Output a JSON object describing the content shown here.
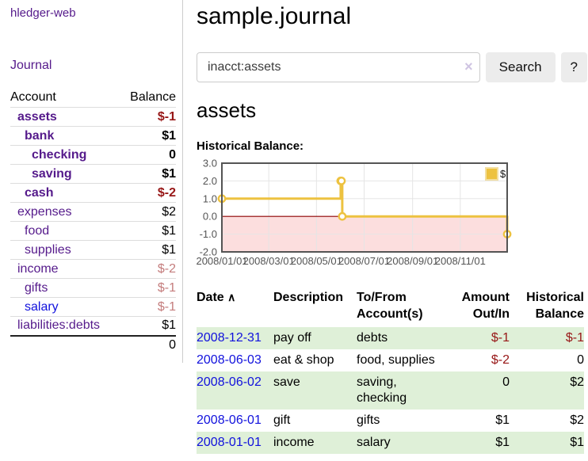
{
  "app": {
    "brand": "hledger-web",
    "nav_journal": "Journal"
  },
  "colors": {
    "link_purple": "#551a8b",
    "link_blue": "#1111dd",
    "negative_red": "#971616",
    "pale_negative_red": "#c47c7c",
    "row_green": "#dff0d8",
    "chart_line_yellow": "#edc240",
    "chart_negative_fill": "#fcdede",
    "chart_zero_line": "#8b0000",
    "button_gray": "#ececec"
  },
  "sidebar": {
    "headers": {
      "account": "Account",
      "balance": "Balance"
    },
    "rows": [
      {
        "account": "assets",
        "level": 1,
        "bold": true,
        "link_color": "purple",
        "balance": "$-1",
        "balance_style": "neg-bold"
      },
      {
        "account": "bank",
        "level": 2,
        "bold": true,
        "link_color": "purple",
        "balance": "$1",
        "balance_style": "bold"
      },
      {
        "account": "checking",
        "level": 3,
        "bold": true,
        "link_color": "purple",
        "balance": "0",
        "balance_style": "bold"
      },
      {
        "account": "saving",
        "level": 3,
        "bold": true,
        "link_color": "purple",
        "balance": "$1",
        "balance_style": "bold"
      },
      {
        "account": "cash",
        "level": 2,
        "bold": true,
        "link_color": "purple",
        "balance": "$-2",
        "balance_style": "neg-bold"
      },
      {
        "account": "expenses",
        "level": 1,
        "bold": false,
        "link_color": "purple",
        "balance": "$2",
        "balance_style": "plain"
      },
      {
        "account": "food",
        "level": 2,
        "bold": false,
        "link_color": "purple",
        "balance": "$1",
        "balance_style": "plain"
      },
      {
        "account": "supplies",
        "level": 2,
        "bold": false,
        "link_color": "purple",
        "balance": "$1",
        "balance_style": "plain"
      },
      {
        "account": "income",
        "level": 1,
        "bold": false,
        "link_color": "purple",
        "balance": "$-2",
        "balance_style": "pale"
      },
      {
        "account": "gifts",
        "level": 2,
        "bold": false,
        "link_color": "purple",
        "balance": "$-1",
        "balance_style": "pale"
      },
      {
        "account": "salary",
        "level": 2,
        "bold": false,
        "link_color": "blue",
        "balance": "$-1",
        "balance_style": "pale"
      },
      {
        "account": "liabilities:debts",
        "level": 1,
        "bold": false,
        "link_color": "purple",
        "balance": "$1",
        "balance_style": "plain"
      }
    ],
    "total": "0"
  },
  "header": {
    "title": "sample.journal"
  },
  "search": {
    "value": "inacct:assets",
    "clear_icon": "×",
    "button_label": "Search",
    "help_label": "?"
  },
  "account_page": {
    "heading": "assets",
    "chart_title": "Historical Balance:"
  },
  "chart_data": {
    "type": "line",
    "step": true,
    "title": "Historical Balance",
    "series": [
      {
        "name": "$",
        "x": [
          "2008-01-01",
          "2008-06-01",
          "2008-06-02",
          "2008-06-03",
          "2008-12-31"
        ],
        "values": [
          1,
          2,
          2,
          0,
          -1
        ]
      }
    ],
    "x_range": [
      "2008-01-01",
      "2008-12-31"
    ],
    "ylim": [
      -2,
      3
    ],
    "y_ticks": [
      3.0,
      2.0,
      1.0,
      0.0,
      -1.0,
      -2.0
    ],
    "x_ticks": [
      "2008/01/01",
      "2008/03/01",
      "2008/05/01",
      "2008/07/01",
      "2008/09/01",
      "2008/11/01"
    ],
    "legend": [
      "$"
    ],
    "legend_position": "top-right",
    "grid": true,
    "line_color": "#edc240",
    "marker_fill": "#ffffff",
    "negative_region_color": "#fcdede",
    "zero_line_color": "#8b0000"
  },
  "register": {
    "sort_icon": "∧",
    "headers": [
      {
        "label": "Date"
      },
      {
        "label": "Description"
      },
      {
        "label": "To/From Account(s)"
      },
      {
        "label": "Amount Out/In"
      },
      {
        "label": "Historical Balance"
      }
    ],
    "rows": [
      {
        "date": "2008-12-31",
        "description": "pay off",
        "accounts": "debts",
        "amount": "$-1",
        "balance": "$-1",
        "amount_neg": true,
        "balance_neg": true
      },
      {
        "date": "2008-06-03",
        "description": "eat & shop",
        "accounts": "food, supplies",
        "amount": "$-2",
        "balance": "0",
        "amount_neg": true,
        "balance_neg": false
      },
      {
        "date": "2008-06-02",
        "description": "save",
        "accounts": "saving, checking",
        "amount": "0",
        "balance": "$2",
        "amount_neg": false,
        "balance_neg": false
      },
      {
        "date": "2008-06-01",
        "description": "gift",
        "accounts": "gifts",
        "amount": "$1",
        "balance": "$2",
        "amount_neg": false,
        "balance_neg": false
      },
      {
        "date": "2008-01-01",
        "description": "income",
        "accounts": "salary",
        "amount": "$1",
        "balance": "$1",
        "amount_neg": false,
        "balance_neg": false
      }
    ]
  }
}
